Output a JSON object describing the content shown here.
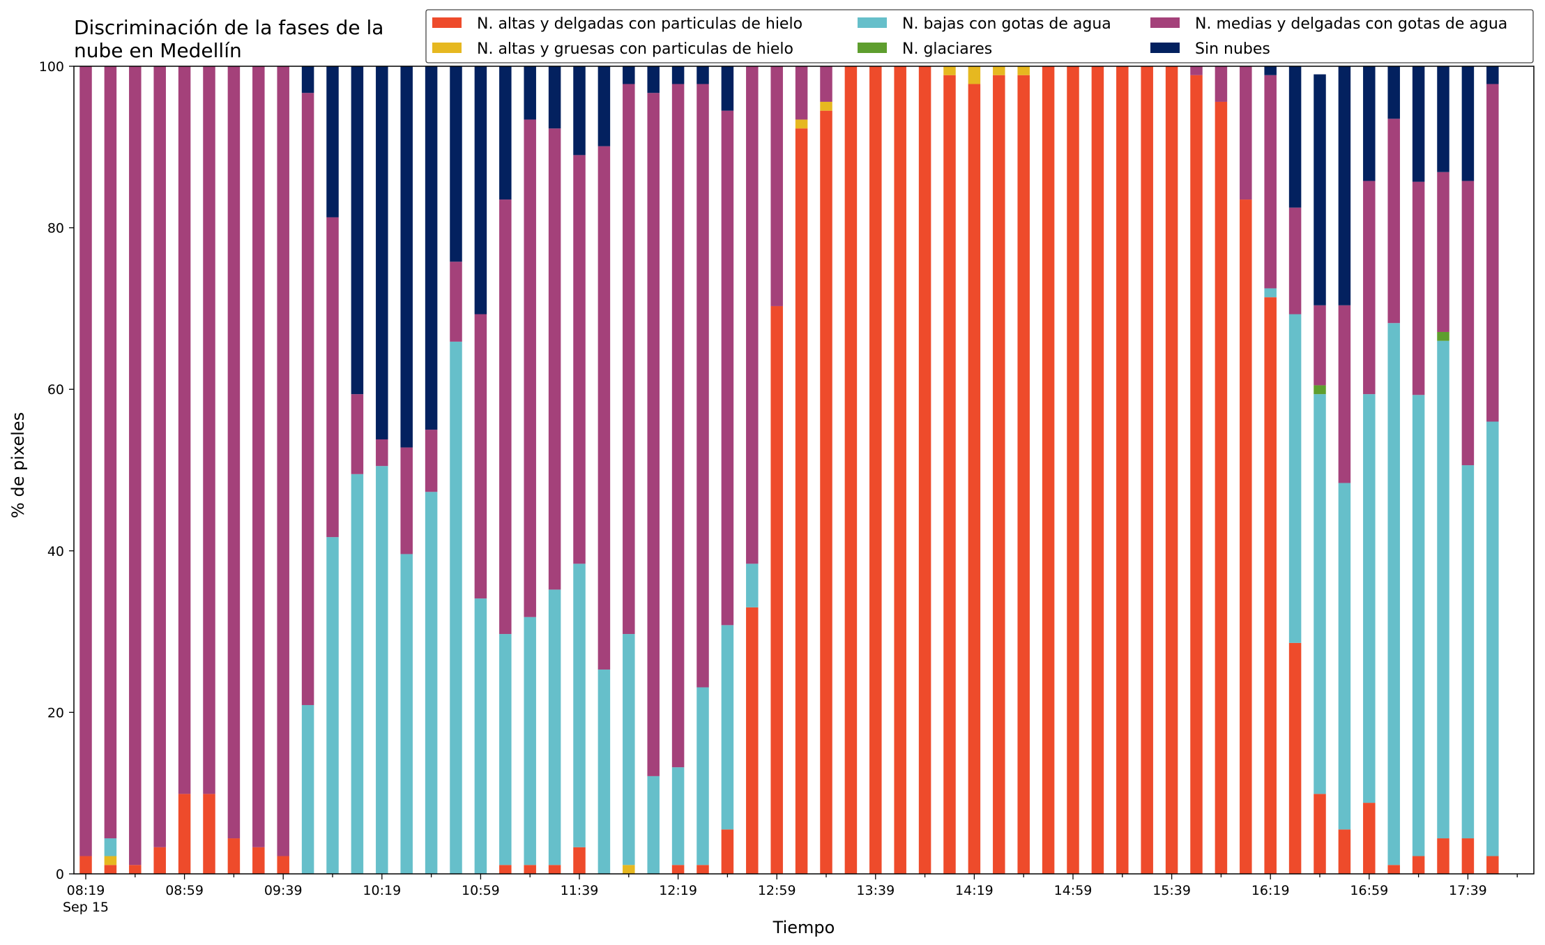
{
  "chart_data": {
    "type": "bar",
    "stacked": true,
    "title_lines": [
      "Discriminación de la fases de la",
      "nube en Medellín"
    ],
    "xlabel": "Tiempo",
    "ylabel": "% de pixeles",
    "ylim": [
      0,
      100
    ],
    "yticks": [
      "0",
      "20",
      "40",
      "60",
      "80",
      "100"
    ],
    "xtick_labels": [
      "08:19",
      "08:59",
      "09:39",
      "10:19",
      "10:59",
      "11:39",
      "12:19",
      "12:59",
      "13:39",
      "14:19",
      "14:59",
      "15:39",
      "16:19",
      "16:59",
      "17:39"
    ],
    "xtick_sublabel": "Sep 15",
    "grid": false,
    "legend_position": "top-right",
    "categories": [
      "08:19",
      "08:29",
      "08:39",
      "08:49",
      "08:59",
      "09:09",
      "09:19",
      "09:29",
      "09:39",
      "09:49",
      "09:59",
      "10:09",
      "10:19",
      "10:29",
      "10:39",
      "10:49",
      "10:59",
      "11:09",
      "11:19",
      "11:29",
      "11:39",
      "11:49",
      "11:59",
      "12:09",
      "12:19",
      "12:29",
      "12:39",
      "12:49",
      "12:59",
      "13:09",
      "13:19",
      "13:29",
      "13:39",
      "13:49",
      "13:59",
      "14:09",
      "14:19",
      "14:29",
      "14:39",
      "14:49",
      "14:59",
      "15:09",
      "15:19",
      "15:29",
      "15:39",
      "15:49",
      "15:59",
      "16:09",
      "16:19",
      "16:29",
      "16:39",
      "16:49",
      "16:59",
      "17:09",
      "17:19",
      "17:29",
      "17:39",
      "17:49"
    ],
    "series": [
      {
        "name": "N. altas y delgadas con particulas de hielo",
        "color": "#ee4b2b",
        "values": [
          2.2,
          1.1,
          1.1,
          3.3,
          9.9,
          9.9,
          4.4,
          3.3,
          2.2,
          0,
          0,
          0,
          0,
          0,
          0,
          0,
          0,
          1.1,
          1.1,
          1.1,
          3.3,
          0,
          0,
          0,
          1.1,
          1.1,
          5.5,
          33,
          70.3,
          92.3,
          94.5,
          100,
          100,
          100,
          100,
          98.9,
          97.8,
          98.9,
          98.9,
          100,
          100,
          100,
          100,
          100,
          100,
          98.9,
          95.6,
          83.5,
          71.4,
          28.6,
          9.9,
          5.5,
          8.8,
          1.1,
          2.2,
          4.4,
          4.4,
          2.2
        ]
      },
      {
        "name": "N. altas y gruesas con particulas de hielo",
        "color": "#e6b820",
        "values": [
          0,
          1.1,
          0,
          0,
          0,
          0,
          0,
          0,
          0,
          0,
          0,
          0,
          0,
          0,
          0,
          0,
          0,
          0,
          0,
          0,
          0,
          0,
          1.1,
          0,
          0,
          0,
          0,
          0,
          0,
          1.1,
          1.1,
          0,
          0,
          0,
          0,
          1.1,
          2.2,
          1.1,
          1.1,
          0,
          0,
          0,
          0,
          0,
          0,
          0,
          0,
          0,
          0,
          0,
          0,
          0,
          0,
          0,
          0,
          0,
          0,
          0
        ]
      },
      {
        "name": "N. bajas con gotas de agua",
        "color": "#66bfca",
        "values": [
          0,
          2.2,
          0,
          0,
          0,
          0,
          0,
          0,
          0,
          20.9,
          41.7,
          49.5,
          50.5,
          39.6,
          47.3,
          65.9,
          34.1,
          28.6,
          30.7,
          34.1,
          35.1,
          25.3,
          28.6,
          12.1,
          12.1,
          22,
          25.3,
          5.4,
          0,
          0,
          0,
          0,
          0,
          0,
          0,
          0,
          0,
          0,
          0,
          0,
          0,
          0,
          0,
          0,
          0,
          0,
          0,
          0,
          1.1,
          40.7,
          49.5,
          42.9,
          50.6,
          67.1,
          57.1,
          61.6,
          46.2,
          53.8
        ]
      },
      {
        "name": "N. glaciares",
        "color": "#5e9e2e",
        "values": [
          0,
          0,
          0,
          0,
          0,
          0,
          0,
          0,
          0,
          0,
          0,
          0,
          0,
          0,
          0,
          0,
          0,
          0,
          0,
          0,
          0,
          0,
          0,
          0,
          0,
          0,
          0,
          0,
          0,
          0,
          0,
          0,
          0,
          0,
          0,
          0,
          0,
          0,
          0,
          0,
          0,
          0,
          0,
          0,
          0,
          0,
          0,
          0,
          0,
          0,
          1.1,
          0,
          0,
          0,
          0,
          1.1,
          0,
          0
        ]
      },
      {
        "name": "N. medias y delgadas con gotas de agua",
        "color": "#a4417a",
        "values": [
          97.8,
          95.6,
          98.9,
          96.7,
          90.1,
          90.1,
          95.6,
          96.7,
          97.8,
          75.8,
          39.6,
          9.9,
          3.3,
          13.2,
          7.7,
          9.9,
          35.2,
          53.8,
          61.6,
          57.1,
          50.6,
          64.8,
          68.1,
          84.6,
          84.6,
          74.7,
          63.7,
          61.6,
          29.7,
          6.6,
          4.4,
          0,
          0,
          0,
          0,
          0,
          0,
          0,
          0,
          0,
          0,
          0,
          0,
          0,
          0,
          1.1,
          4.4,
          16.5,
          26.4,
          13.2,
          9.9,
          22,
          26.4,
          25.3,
          26.4,
          19.8,
          35.2,
          41.8
        ]
      },
      {
        "name": "Sin nubes",
        "color": "#03215f",
        "values": [
          0,
          0,
          0,
          0,
          0,
          0,
          0,
          0,
          0,
          3.3,
          18.7,
          40.6,
          46.2,
          47.2,
          45,
          24.2,
          30.7,
          16.5,
          6.6,
          7.7,
          11,
          9.9,
          2.2,
          3.3,
          2.2,
          2.2,
          5.5,
          0,
          0,
          0,
          0,
          0,
          0,
          0,
          0,
          0,
          0,
          0,
          0,
          0,
          0,
          0,
          0,
          0,
          0,
          0,
          0,
          0,
          1.1,
          17.5,
          28.6,
          29.6,
          14.2,
          6.5,
          14.3,
          13.1,
          14.2,
          2.2
        ]
      }
    ]
  }
}
